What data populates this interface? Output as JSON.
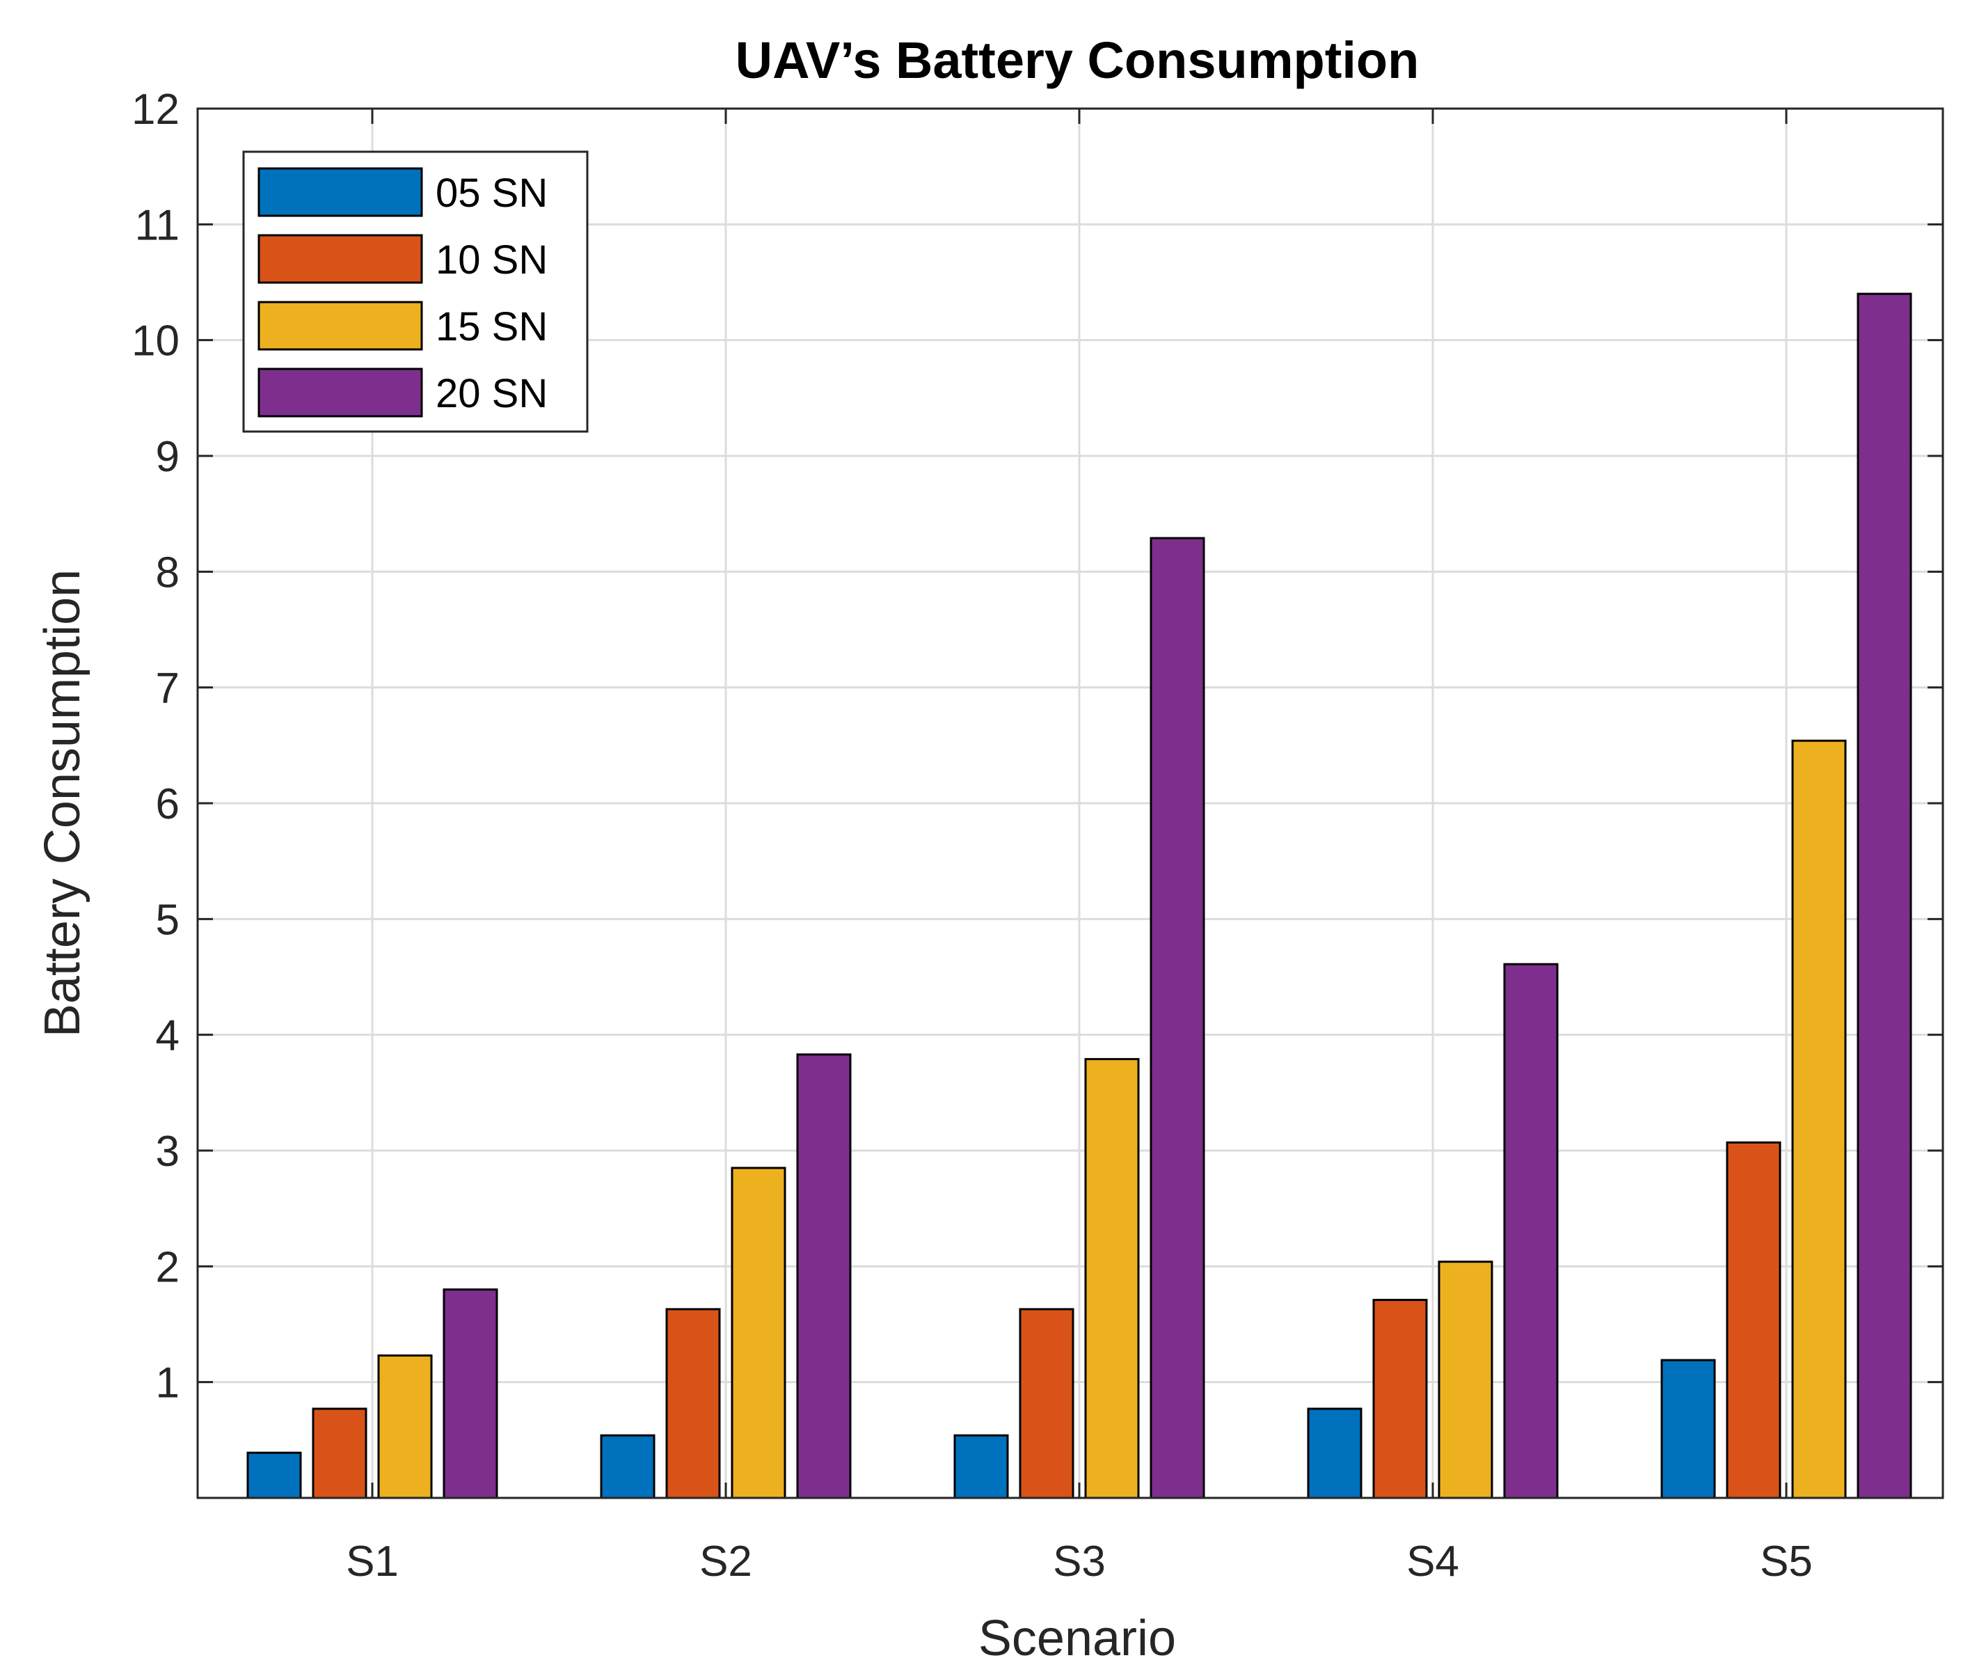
{
  "chart_data": {
    "type": "bar",
    "title": "UAV’s Battery Consumption",
    "xlabel": "Scenario",
    "ylabel": "Battery Consumption",
    "categories": [
      "S1",
      "S2",
      "S3",
      "S4",
      "S5"
    ],
    "ylim": [
      0,
      12
    ],
    "yticks": [
      "1",
      "2",
      "3",
      "4",
      "5",
      "6",
      "7",
      "8",
      "9",
      "10",
      "11",
      "12"
    ],
    "grid": true,
    "legend_position": "top-left",
    "series": [
      {
        "name": "05 SN",
        "color": "#0072BD",
        "values": [
          0.39,
          0.54,
          0.54,
          0.77,
          1.19
        ]
      },
      {
        "name": "10 SN",
        "color": "#D95319",
        "values": [
          0.77,
          1.63,
          1.63,
          1.71,
          3.07
        ]
      },
      {
        "name": "15 SN",
        "color": "#EDB120",
        "values": [
          1.23,
          2.85,
          3.79,
          2.04,
          6.54
        ]
      },
      {
        "name": "20 SN",
        "color": "#7E2F8E",
        "values": [
          1.8,
          3.83,
          8.29,
          4.61,
          10.4
        ]
      }
    ]
  }
}
